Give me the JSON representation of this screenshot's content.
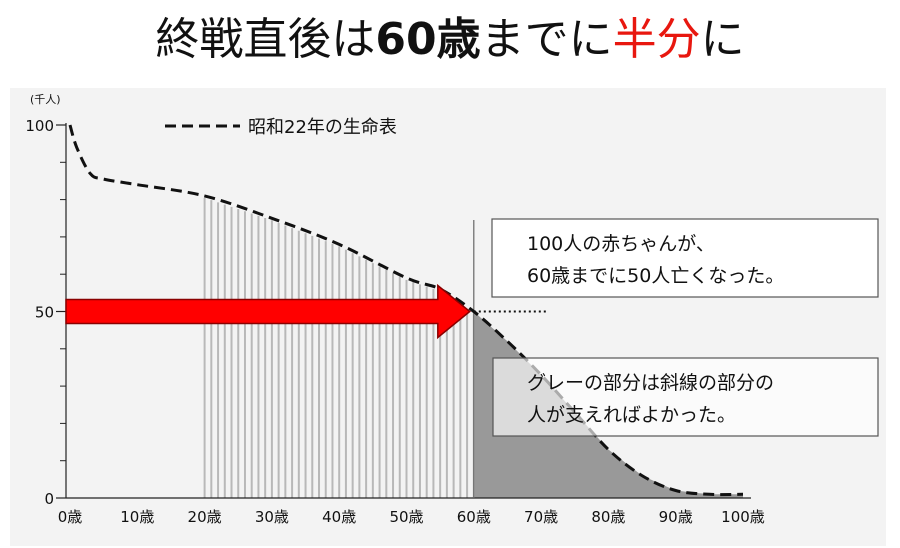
{
  "title": {
    "part1": "終戦直後は",
    "part2": "60歳",
    "part3": "までに",
    "part4": "半分",
    "part5": "に",
    "emphasis_color": "#e8170f"
  },
  "chart_data": {
    "type": "line",
    "y_unit": "(千人)",
    "ylim": [
      0,
      100
    ],
    "xlim": [
      0,
      100
    ],
    "y_ticks": [
      {
        "value": 100,
        "label": "100"
      },
      {
        "value": 50,
        "label": "50"
      },
      {
        "value": 0,
        "label": "0"
      }
    ],
    "x_ticks": [
      {
        "value": 0,
        "label": "0歳"
      },
      {
        "value": 10,
        "label": "10歳"
      },
      {
        "value": 20,
        "label": "20歳"
      },
      {
        "value": 30,
        "label": "30歳"
      },
      {
        "value": 40,
        "label": "40歳"
      },
      {
        "value": 50,
        "label": "50歳"
      },
      {
        "value": 60,
        "label": "60歳"
      },
      {
        "value": 70,
        "label": "70歳"
      },
      {
        "value": 80,
        "label": "80歳"
      },
      {
        "value": 90,
        "label": "90歳"
      },
      {
        "value": 100,
        "label": "100歳"
      }
    ],
    "series": [
      {
        "name": "昭和22年の生命表",
        "style": "dashed",
        "x": [
          0,
          1,
          3,
          5,
          10,
          20,
          30,
          40,
          50,
          55,
          60,
          65,
          70,
          75,
          80,
          85,
          90,
          95,
          100
        ],
        "y": [
          100,
          94,
          87,
          85.5,
          84,
          81,
          75,
          68,
          59,
          56,
          50,
          42,
          33,
          23,
          13,
          6,
          2,
          1,
          1
        ]
      }
    ],
    "hatched_region": {
      "from": 20,
      "to": 60,
      "color": "#b8b8b8"
    },
    "gray_region": {
      "from": 60,
      "to": 100,
      "color": "#999999"
    },
    "reference_line": {
      "x": 60,
      "y": 50
    },
    "arrow": {
      "from_x": 0,
      "to_x": 60,
      "y": 50,
      "color": "#ff0000"
    },
    "annotations": [
      {
        "lines": [
          "100人の赤ちゃんが、",
          "60歳までに50人亡くなった。"
        ]
      },
      {
        "lines": [
          "グレーの部分は斜線の部分の",
          "人が支えればよかった。"
        ]
      }
    ]
  }
}
